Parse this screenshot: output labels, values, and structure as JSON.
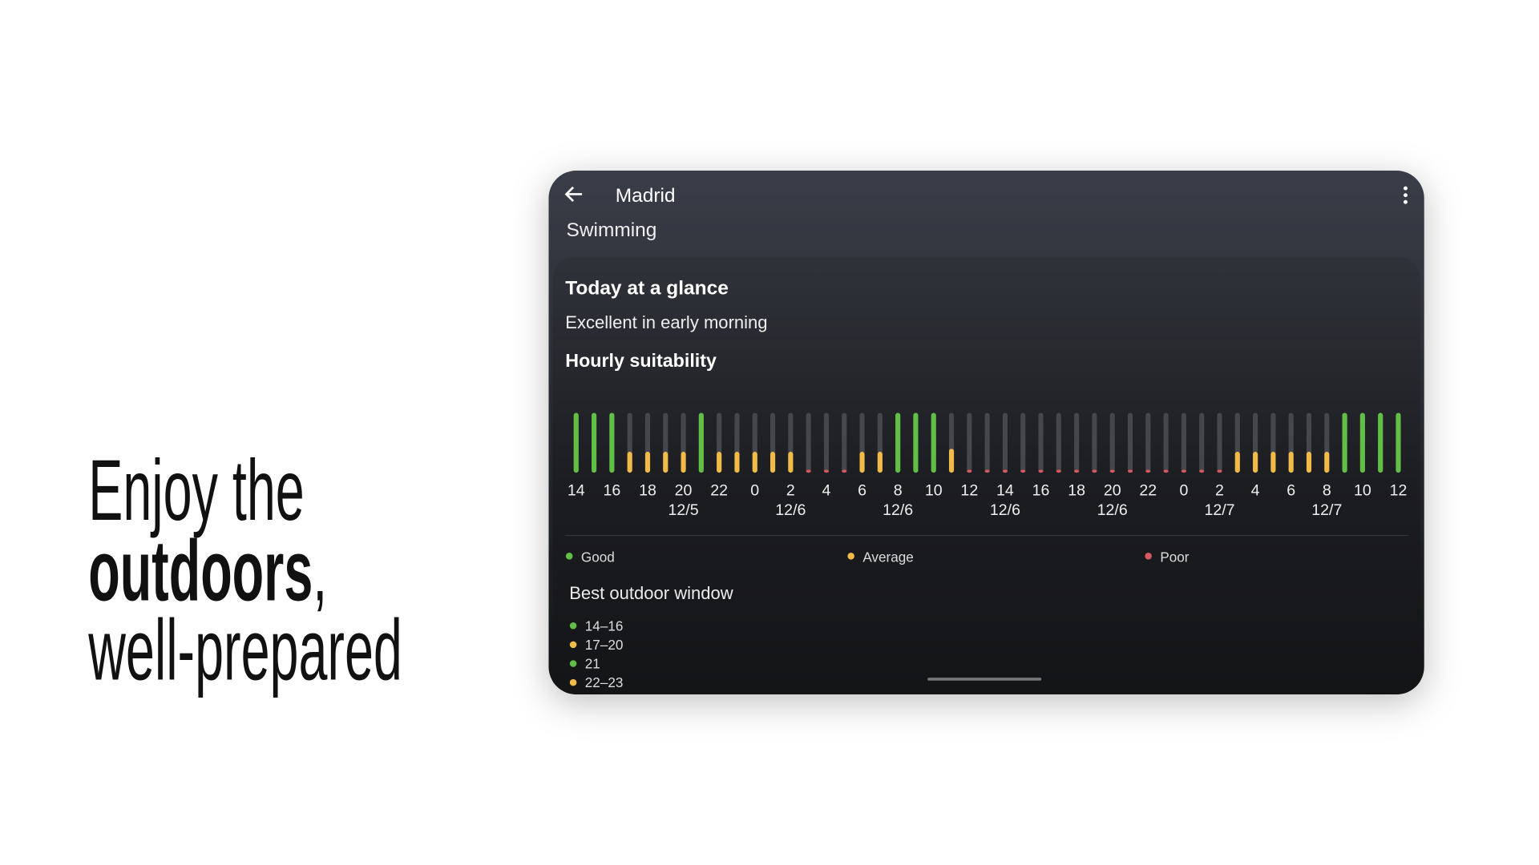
{
  "hero": {
    "line1": "Enjoy the",
    "bold": "outdoors",
    "comma": ",",
    "line3": "well-prepared"
  },
  "app": {
    "city": "Madrid",
    "activity": "Swimming",
    "glance_title": "Today at a glance",
    "glance_text": "Excellent in early morning",
    "window_title": "Best outdoor window",
    "windows": [
      {
        "label": "14–16",
        "color": "#62bf45"
      },
      {
        "label": "17–20",
        "color": "#f2bb48"
      },
      {
        "label": "21",
        "color": "#62bf45"
      },
      {
        "label": "22–23",
        "color": "#f2bb48"
      }
    ]
  },
  "chart_data": {
    "type": "bar",
    "title": "Hourly suitability",
    "categories": [
      "14",
      null,
      "16",
      null,
      "18",
      null,
      "20",
      null,
      "22",
      null,
      "0",
      null,
      "2",
      null,
      "4",
      null,
      "6",
      null,
      "8",
      null,
      "10",
      null,
      "12",
      null,
      "14",
      null,
      "16",
      null,
      "18",
      null,
      "20",
      null,
      "22",
      null,
      "0",
      null,
      "2",
      null,
      "4",
      null,
      "6",
      null,
      "8",
      null,
      "10",
      null,
      "12"
    ],
    "date_labels": [
      null,
      null,
      null,
      null,
      null,
      null,
      "12/5",
      null,
      null,
      null,
      null,
      null,
      "12/6",
      null,
      null,
      null,
      null,
      null,
      "12/6",
      null,
      null,
      null,
      null,
      null,
      "12/6",
      null,
      null,
      null,
      null,
      null,
      "12/6",
      null,
      null,
      null,
      null,
      null,
      "12/7",
      null,
      null,
      null,
      null,
      null,
      "12/7",
      null,
      null,
      null,
      null
    ],
    "ylim": [
      0,
      100
    ],
    "series": [
      {
        "name": "Good",
        "color": "#62bf45",
        "values": [
          100,
          100,
          100,
          null,
          null,
          null,
          null,
          100,
          null,
          null,
          null,
          null,
          null,
          null,
          null,
          null,
          null,
          null,
          100,
          100,
          100,
          null,
          null,
          null,
          null,
          null,
          null,
          null,
          null,
          null,
          null,
          null,
          null,
          null,
          null,
          null,
          null,
          null,
          null,
          null,
          null,
          null,
          null,
          100,
          100,
          100,
          100
        ]
      },
      {
        "name": "Average",
        "color": "#f2bb48",
        "values": [
          null,
          null,
          null,
          35,
          35,
          35,
          35,
          null,
          35,
          35,
          35,
          35,
          35,
          null,
          null,
          null,
          35,
          35,
          null,
          null,
          null,
          40,
          null,
          null,
          null,
          null,
          null,
          null,
          null,
          null,
          null,
          null,
          null,
          null,
          null,
          null,
          null,
          35,
          35,
          35,
          35,
          35,
          35,
          null,
          null,
          null,
          null
        ]
      },
      {
        "name": "Poor",
        "color": "#d9585e",
        "values": [
          null,
          null,
          null,
          null,
          null,
          null,
          null,
          null,
          null,
          null,
          null,
          null,
          null,
          5,
          5,
          5,
          null,
          null,
          null,
          null,
          null,
          null,
          5,
          5,
          5,
          5,
          5,
          5,
          5,
          5,
          5,
          5,
          5,
          5,
          5,
          5,
          5,
          null,
          null,
          null,
          null,
          null,
          null,
          null,
          null,
          null,
          null
        ]
      }
    ]
  }
}
